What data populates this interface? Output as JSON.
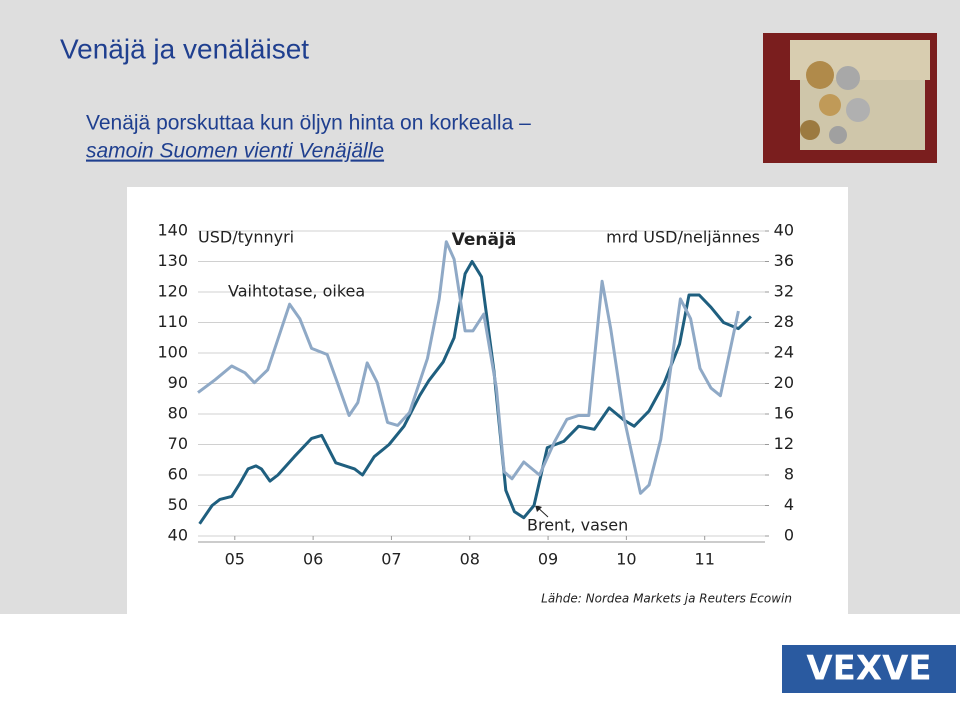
{
  "slide": {
    "title": "Venäjä ja venäläiset",
    "subtitle": "Venäjä porskuttaa kun öljyn hinta on korkealla –",
    "subtitle_link": "samoin Suomen vienti Venäjälle",
    "logo": "VEXVE"
  },
  "chart_data": {
    "type": "line",
    "title": "Venäjä",
    "y_label": "USD/tynnyri",
    "y2_label": "mrd USD/neljännes",
    "source": "Lähde: Nordea Markets ja Reuters Ecowin",
    "xlim": [
      2004.53,
      2011.77
    ],
    "xticks": [
      {
        "value": 2005,
        "label": "05"
      },
      {
        "value": 2006,
        "label": "06"
      },
      {
        "value": 2007,
        "label": "07"
      },
      {
        "value": 2008,
        "label": "08"
      },
      {
        "value": 2009,
        "label": "09"
      },
      {
        "value": 2010,
        "label": "10"
      },
      {
        "value": 2011,
        "label": "11"
      }
    ],
    "ylim": [
      40,
      140
    ],
    "yticks": [
      40,
      50,
      60,
      70,
      80,
      90,
      100,
      110,
      120,
      130,
      140
    ],
    "y2lim": [
      0,
      40
    ],
    "y2ticks": [
      0,
      4,
      8,
      12,
      16,
      20,
      24,
      28,
      32,
      36,
      40
    ],
    "grid": true,
    "series": [
      {
        "name": "Brent, vasen",
        "color": "#1f5f7f",
        "x": [
          2004.55,
          2004.71,
          2004.81,
          2004.96,
          2005.06,
          2005.17,
          2005.27,
          2005.34,
          2005.45,
          2005.55,
          2005.76,
          2005.98,
          2006.11,
          2006.29,
          2006.53,
          2006.63,
          2006.78,
          2006.97,
          2007.16,
          2007.36,
          2007.48,
          2007.66,
          2007.8,
          2007.94,
          2008.03,
          2008.15,
          2008.31,
          2008.46,
          2008.57,
          2008.69,
          2008.82,
          2008.99,
          2009.2,
          2009.39,
          2009.59,
          2009.78,
          2009.97,
          2010.1,
          2010.29,
          2010.48,
          2010.68,
          2010.8,
          2010.93,
          2011.08,
          2011.24,
          2011.43,
          2011.59
        ],
        "values": [
          44,
          50,
          52,
          53,
          57,
          62,
          63,
          62,
          58,
          60,
          66,
          72,
          73,
          64,
          62,
          60,
          66,
          70,
          76,
          86,
          91,
          97,
          105,
          126,
          130,
          125,
          94,
          55,
          48,
          46,
          50,
          69,
          71,
          76,
          75,
          82,
          78,
          76,
          81,
          90,
          103,
          119,
          119,
          115,
          110,
          108,
          112
        ]
      },
      {
        "name": "Vaihtotase, oikea",
        "color": "#8fa9c6",
        "axis": "y2",
        "x": [
          2004.53,
          2004.75,
          2004.96,
          2005.13,
          2005.25,
          2005.42,
          2005.7,
          2005.83,
          2005.98,
          2006.18,
          2006.29,
          2006.46,
          2006.57,
          2006.69,
          2006.82,
          2006.95,
          2007.08,
          2007.23,
          2007.46,
          2007.61,
          2007.7,
          2007.8,
          2007.94,
          2008.04,
          2008.18,
          2008.34,
          2008.44,
          2008.54,
          2008.69,
          2008.89,
          2009.08,
          2009.24,
          2009.39,
          2009.52,
          2009.69,
          2009.8,
          2009.97,
          2010.18,
          2010.29,
          2010.44,
          2010.69,
          2010.82,
          2010.94,
          2011.08,
          2011.2,
          2011.43
        ],
        "values": [
          18.8,
          20.5,
          22.3,
          21.4,
          20.1,
          21.8,
          30.4,
          28.5,
          24.6,
          23.8,
          20.7,
          15.8,
          17.5,
          22.7,
          20.1,
          14.9,
          14.5,
          16.2,
          23.3,
          31.1,
          38.6,
          36.3,
          26.9,
          26.9,
          29.1,
          19.4,
          8.4,
          7.5,
          9.7,
          8.0,
          12.3,
          15.3,
          15.8,
          15.8,
          33.4,
          27.2,
          15.5,
          5.6,
          6.7,
          12.7,
          31.1,
          28.5,
          22.0,
          19.4,
          18.4,
          29.5
        ]
      }
    ]
  }
}
